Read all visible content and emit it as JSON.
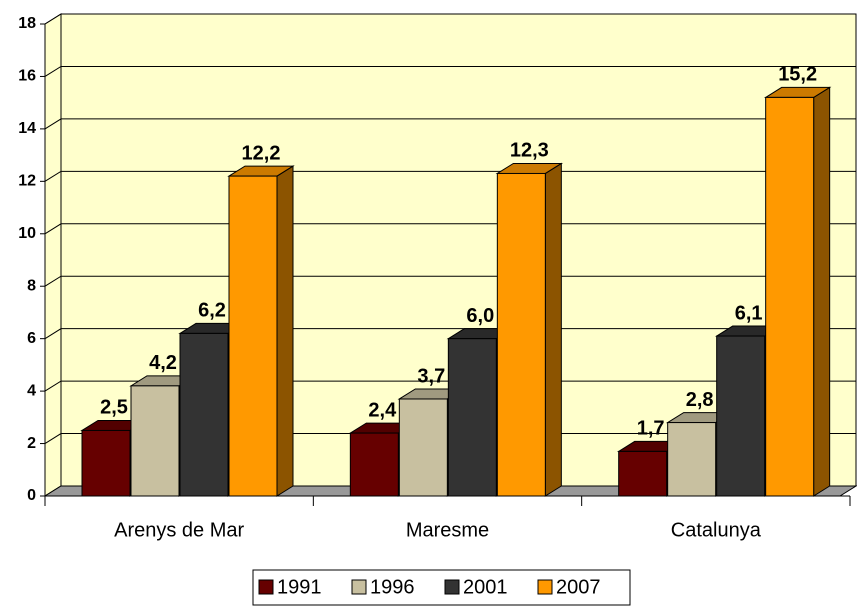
{
  "chart_data": {
    "type": "bar",
    "categories": [
      "Arenys de Mar",
      "Maresme",
      "Catalunya"
    ],
    "series": [
      {
        "name": "1991",
        "color": "#660000",
        "values": [
          2.5,
          2.4,
          1.7
        ],
        "value_labels": [
          "2,5",
          "2,4",
          "1,7"
        ]
      },
      {
        "name": "1996",
        "color": "#c8c0a0",
        "values": [
          4.2,
          3.7,
          2.8
        ],
        "value_labels": [
          "4,2",
          "3,7",
          "2,8"
        ]
      },
      {
        "name": "2001",
        "color": "#333333",
        "values": [
          6.2,
          6.0,
          6.1
        ],
        "value_labels": [
          "6,2",
          "6,0",
          "6,1"
        ]
      },
      {
        "name": "2007",
        "color": "#ff9900",
        "values": [
          12.2,
          12.3,
          15.2
        ],
        "value_labels": [
          "12,2",
          "12,3",
          "15,2"
        ]
      }
    ],
    "ylim": [
      0,
      18
    ],
    "yticks": [
      0,
      2,
      4,
      6,
      8,
      10,
      12,
      14,
      16,
      18
    ],
    "grid": true,
    "wall_color": "#ffffcc",
    "floor_color": "#999999",
    "legend": "bottom"
  }
}
